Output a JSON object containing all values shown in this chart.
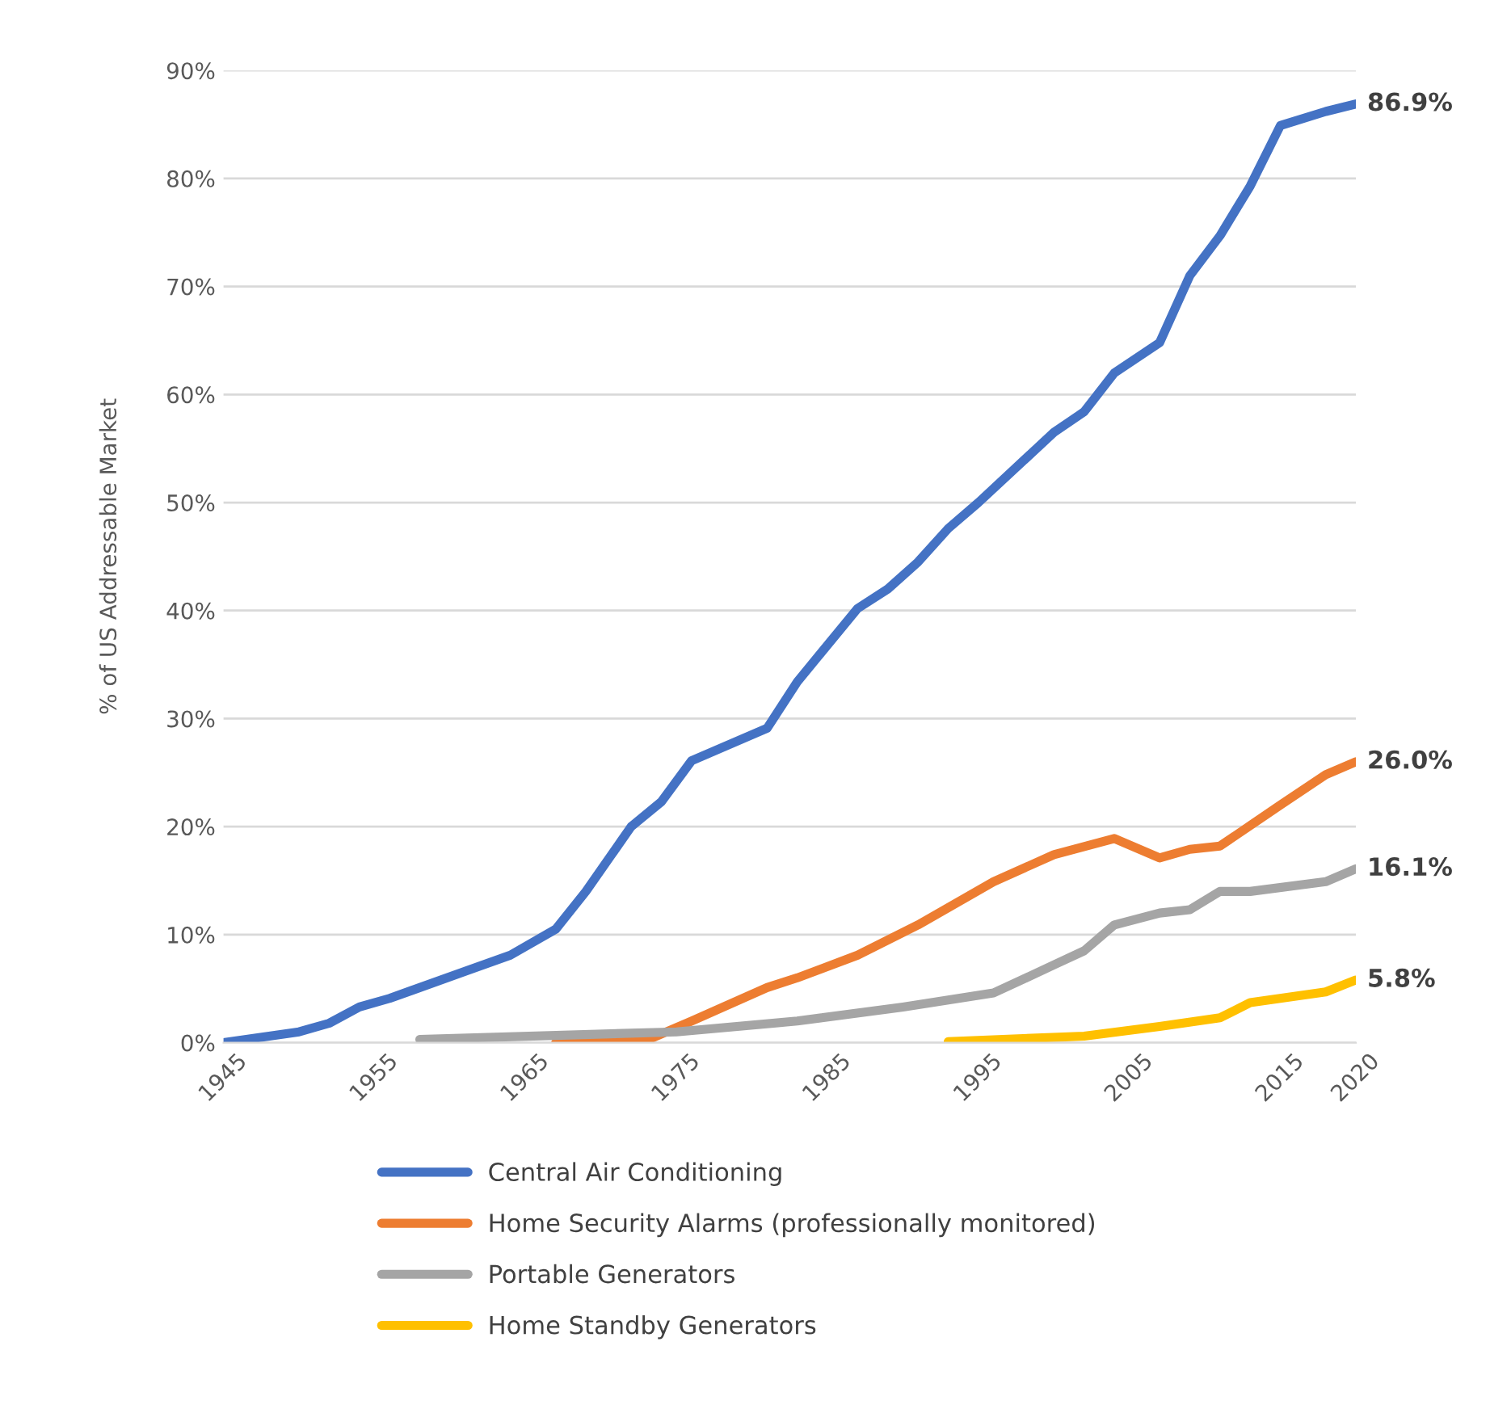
{
  "chart_data": {
    "type": "line",
    "ylabel": "% of US Addressable Market",
    "xlim": [
      1945,
      2020
    ],
    "xticks": [
      1945,
      1955,
      1965,
      1975,
      1985,
      1995,
      2005,
      2015,
      2020
    ],
    "ylim": [
      0,
      90
    ],
    "yticks": [
      {
        "value": 0,
        "label": "0%"
      },
      {
        "value": 10,
        "label": "10%"
      },
      {
        "value": 20,
        "label": "20%"
      },
      {
        "value": 30,
        "label": "30%"
      },
      {
        "value": 40,
        "label": "40%"
      },
      {
        "value": 50,
        "label": "50%"
      },
      {
        "value": 60,
        "label": "60%"
      },
      {
        "value": 70,
        "label": "70%"
      },
      {
        "value": 80,
        "label": "80%"
      },
      {
        "value": 90,
        "label": "90%"
      }
    ],
    "grid": "y",
    "legend": "bottom",
    "marker": "none",
    "line_style": "solid",
    "series": [
      {
        "name": "Central Air Conditioning",
        "color": "#4472c4",
        "x": [
          1945,
          1950,
          1952,
          1954,
          1956,
          1961,
          1964,
          1967,
          1969,
          1972,
          1974,
          1976,
          1981,
          1983,
          1987,
          1989,
          1991,
          1993,
          1995,
          2000,
          2002,
          2004,
          2007,
          2009,
          2011,
          2013,
          2015,
          2018,
          2020
        ],
        "values": [
          0,
          1.0,
          1.8,
          3.3,
          4.1,
          6.6,
          8.1,
          10.5,
          14,
          20,
          22.3,
          26.1,
          29.1,
          33.4,
          40.2,
          42,
          44.5,
          47.6,
          50,
          56.5,
          58.4,
          62,
          64.8,
          71,
          74.7,
          79.3,
          84.9,
          86.2,
          86.9
        ],
        "value_labels": [
          null,
          null,
          null,
          null,
          null,
          null,
          null,
          null,
          null,
          null,
          null,
          null,
          null,
          null,
          null,
          null,
          null,
          null,
          null,
          null,
          null,
          null,
          null,
          null,
          null,
          null,
          null,
          null,
          "86.9%"
        ]
      },
      {
        "name": "Home Security Alarms (professionally monitored)",
        "color": "#ed7d31",
        "x": [
          1967,
          1973,
          1976,
          1981,
          1983,
          1987,
          1991,
          1996,
          2000,
          2004,
          2007,
          2009,
          2011,
          2015,
          2018,
          2020
        ],
        "values": [
          0,
          0.2,
          2.0,
          5.1,
          6.0,
          8.1,
          10.9,
          14.9,
          17.4,
          18.9,
          17.1,
          17.9,
          18.2,
          22,
          24.8,
          26.0
        ],
        "value_labels": [
          null,
          null,
          null,
          null,
          null,
          null,
          null,
          null,
          null,
          null,
          null,
          null,
          null,
          null,
          null,
          "26.0%"
        ]
      },
      {
        "name": "Portable Generators",
        "color": "#a5a5a5",
        "x": [
          1958,
          1975,
          1983,
          1990,
          1996,
          2000,
          2002,
          2004,
          2007,
          2009,
          2011,
          2013,
          2018,
          2020
        ],
        "values": [
          0.3,
          1.0,
          2.0,
          3.3,
          4.6,
          7.2,
          8.5,
          10.9,
          12.0,
          12.3,
          14.0,
          14.0,
          14.9,
          16.1
        ],
        "value_labels": [
          null,
          null,
          null,
          null,
          null,
          null,
          null,
          null,
          null,
          null,
          null,
          null,
          null,
          "16.1%"
        ]
      },
      {
        "name": "Home Standby Generators",
        "color": "#ffc000",
        "x": [
          1993,
          2002,
          2007,
          2011,
          2013,
          2018,
          2020
        ],
        "values": [
          0.1,
          0.6,
          1.5,
          2.3,
          3.7,
          4.7,
          5.8
        ],
        "value_labels": [
          null,
          null,
          null,
          null,
          null,
          null,
          "5.8%"
        ]
      }
    ]
  }
}
